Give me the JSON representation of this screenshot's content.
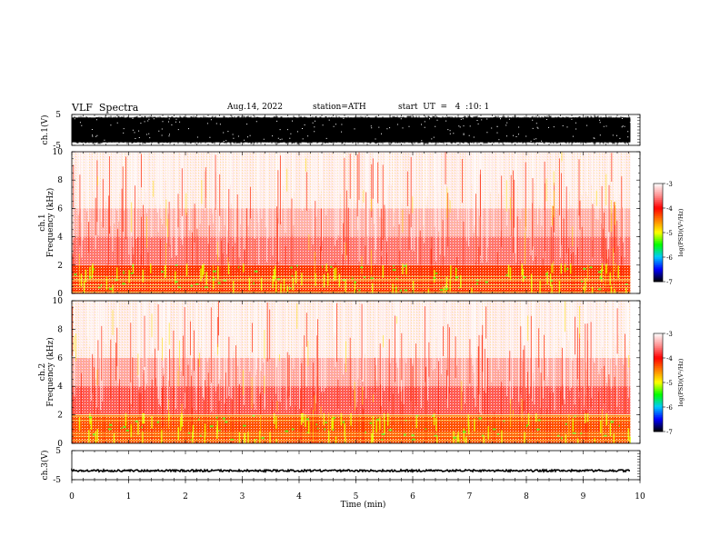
{
  "header": {
    "title": "VLF  Spectra",
    "date": "Aug.14, 2022",
    "station": "station=ATH",
    "start": "start  UT  =   4  :10: 1"
  },
  "chart_data": [
    {
      "type": "line",
      "id": "ch1-waveform",
      "ylabel": "ch.1(V)",
      "ylim": [
        -5,
        5
      ],
      "yticks": [
        "5",
        "-5"
      ],
      "xlim": [
        0,
        10
      ],
      "data_xmax": 9.83,
      "trace": {
        "center": 0,
        "amplitude_min": -4.6,
        "amplitude_max": 4.6,
        "color": "#000000",
        "note_shape": "dense noise band"
      }
    },
    {
      "type": "heatmap",
      "id": "ch1-spectrogram",
      "ylabel_channel": "ch.1",
      "ylabel": "Frequency  (kHz)",
      "ylim": [
        0,
        10
      ],
      "yticks": [
        "0",
        "2",
        "4",
        "6",
        "8",
        "10"
      ],
      "xlim": [
        0,
        10
      ],
      "data_xmax": 9.83,
      "bands": [
        {
          "fmin": 0,
          "fmax": 2,
          "level": -4.2
        },
        {
          "fmin": 2,
          "fmax": 4,
          "level": -3.6
        },
        {
          "fmin": 4,
          "fmax": 6,
          "level": -3.35
        },
        {
          "fmin": 6,
          "fmax": 10,
          "level": -3.1
        }
      ],
      "lines_khz": [
        0.1,
        0.4,
        0.6,
        0.9,
        1.0,
        1.2
      ]
    },
    {
      "type": "heatmap",
      "id": "ch2-spectrogram",
      "ylabel_channel": "ch.2",
      "ylabel": "Frequency  (kHz)",
      "ylim": [
        0,
        10
      ],
      "yticks": [
        "0",
        "2",
        "4",
        "6",
        "8",
        "10"
      ],
      "xlim": [
        0,
        10
      ],
      "data_xmax": 9.83,
      "bands": [
        {
          "fmin": 0,
          "fmax": 2,
          "level": -4.3
        },
        {
          "fmin": 2,
          "fmax": 4,
          "level": -3.7
        },
        {
          "fmin": 4,
          "fmax": 6,
          "level": -3.4
        },
        {
          "fmin": 6,
          "fmax": 10,
          "level": -3.1
        }
      ],
      "lines_khz": [
        0.2,
        0.5,
        0.7,
        1.6,
        1.9,
        2.0
      ]
    },
    {
      "type": "line",
      "id": "ch3-waveform",
      "ylabel": "ch.3(V)",
      "ylim": [
        -5,
        5
      ],
      "yticks": [
        "5",
        "-5"
      ],
      "xlim": [
        0,
        10
      ],
      "data_xmax": 9.83,
      "trace": {
        "center": -1.9,
        "amplitude_min": -2.3,
        "amplitude_max": -1.5,
        "color": "#000000"
      }
    }
  ],
  "x_axis": {
    "label": "Time  (min)",
    "ticks": [
      0,
      1,
      2,
      3,
      4,
      5,
      6,
      7,
      8,
      9,
      10
    ],
    "tick_labels": [
      "0",
      "1",
      "2",
      "3",
      "4",
      "5",
      "6",
      "7",
      "8",
      "9",
      "10"
    ]
  },
  "colorbar": {
    "label": "log(PSD)(V²/Hz)",
    "range": [
      -7,
      -3
    ],
    "tick_labels": [
      "-3",
      "-4",
      "-5",
      "-6",
      "-7"
    ],
    "stops": [
      {
        "v": -7,
        "color": "#000000"
      },
      {
        "v": -6.5,
        "color": "#0000ff"
      },
      {
        "v": -6,
        "color": "#00c8ff"
      },
      {
        "v": -5.5,
        "color": "#00ff00"
      },
      {
        "v": -5,
        "color": "#ffff00"
      },
      {
        "v": -4.5,
        "color": "#ff8000"
      },
      {
        "v": -4,
        "color": "#ff0000"
      },
      {
        "v": -3.5,
        "color": "#ff9090"
      },
      {
        "v": -3,
        "color": "#ffffff"
      }
    ]
  }
}
